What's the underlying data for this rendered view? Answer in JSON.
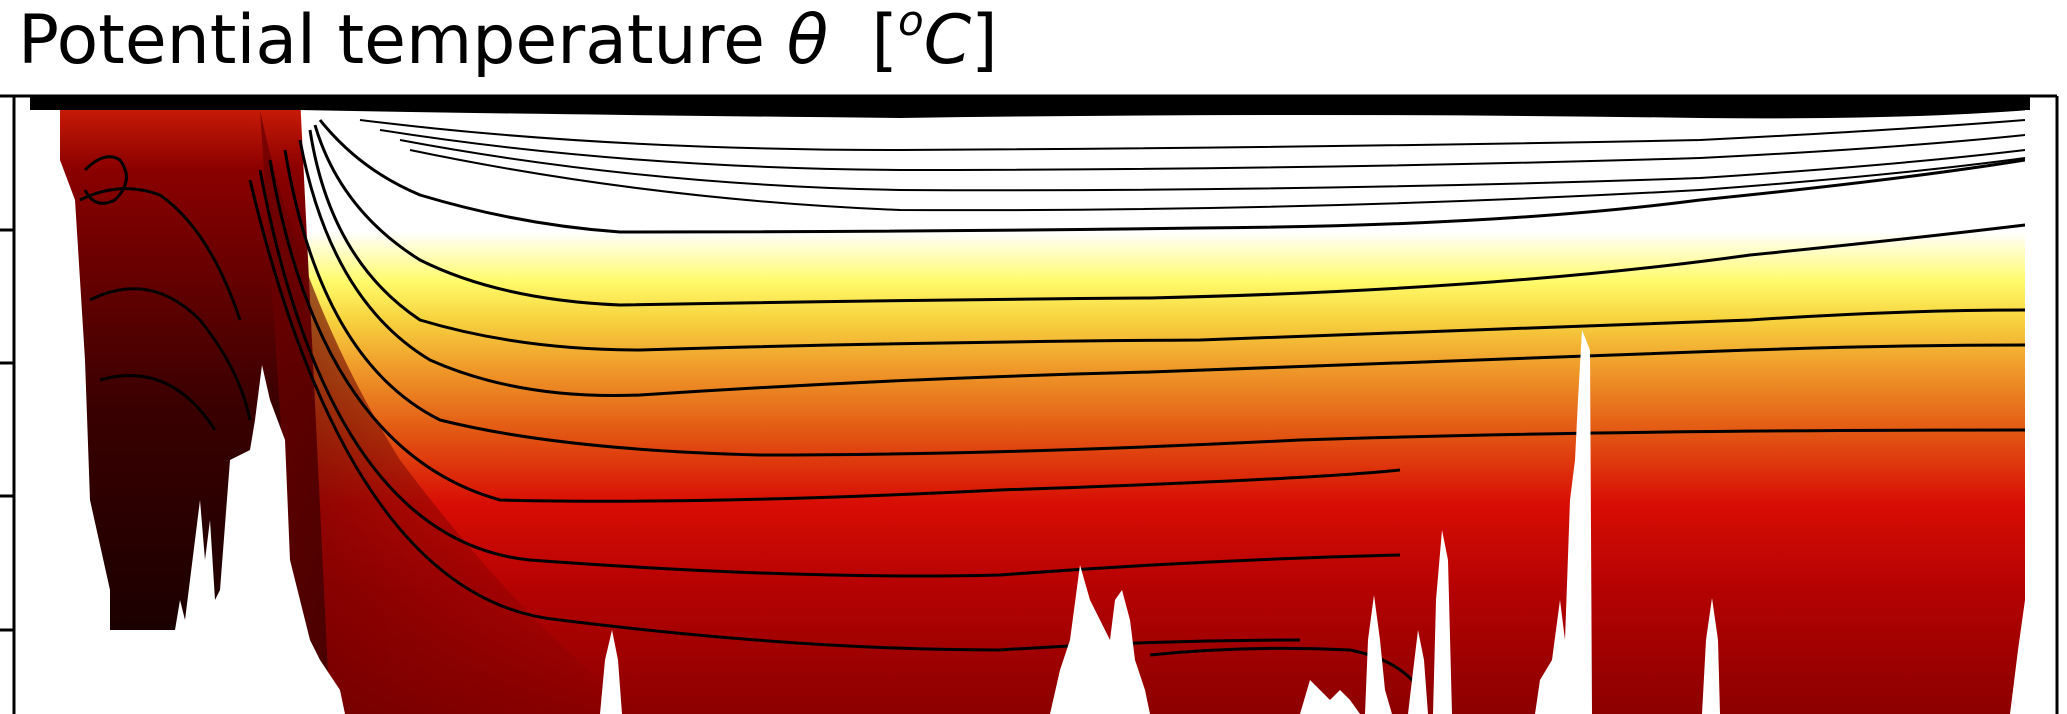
{
  "chart_data": {
    "type": "heatmap",
    "title": "Potential temperature",
    "title_symbol": "θ",
    "title_unit_open": "[",
    "title_unit_sup": "o",
    "title_unit": "C",
    "title_unit_close": "]",
    "colormap": "afmhot",
    "contour_lines": true,
    "grid": false,
    "colors": {
      "seafloor": "#ffffff",
      "frame": "#000000",
      "contour": "#000000"
    }
  }
}
